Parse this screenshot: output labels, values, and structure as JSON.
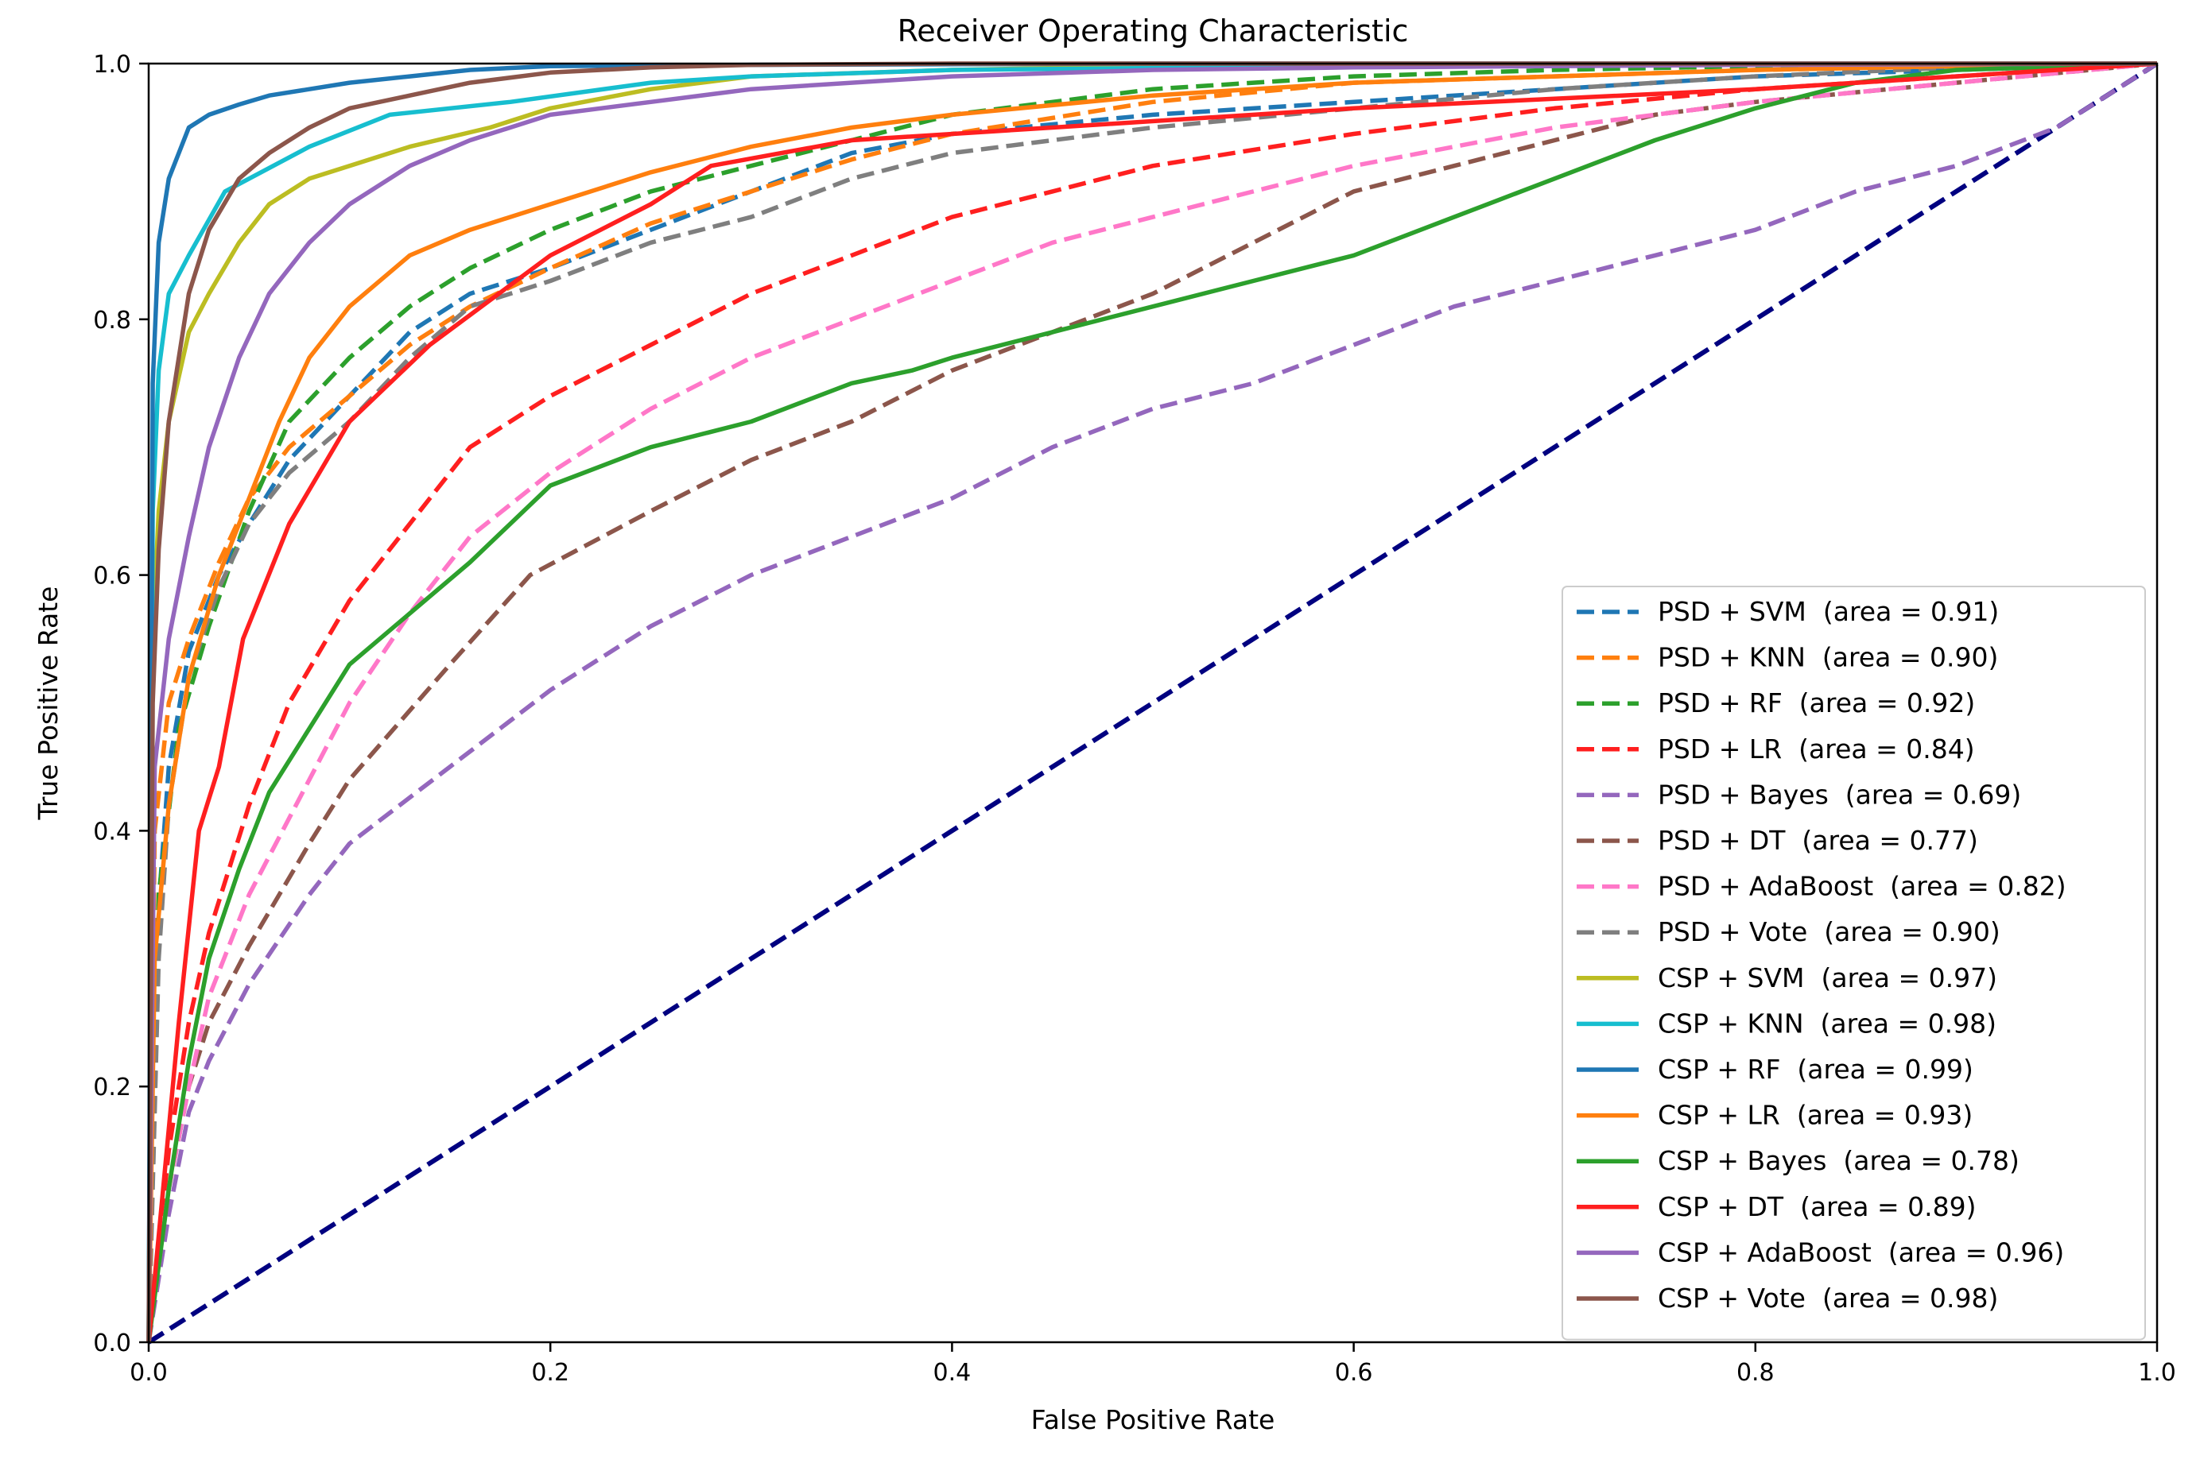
{
  "chart_data": {
    "type": "line",
    "title": "Receiver Operating Characteristic",
    "xlabel": "False Positive Rate",
    "ylabel": "True Positive Rate",
    "xlim": [
      0.0,
      1.0
    ],
    "ylim": [
      0.0,
      1.0
    ],
    "x_ticks": [
      "0.0",
      "0.2",
      "0.4",
      "0.6",
      "0.8",
      "1.0"
    ],
    "y_ticks": [
      "0.0",
      "0.2",
      "0.4",
      "0.6",
      "0.8",
      "1.0"
    ],
    "grid": false,
    "legend_position": "lower-right",
    "reference_line": {
      "name": "chance",
      "color": "#000080",
      "style": "dashed",
      "x": [
        0,
        1
      ],
      "y": [
        0,
        1
      ]
    },
    "series": [
      {
        "name": "PSD + SVM",
        "legend": "PSD + SVM  (area = 0.91)",
        "color": "#1f77b4",
        "style": "dashed",
        "x": [
          0,
          0.003,
          0.01,
          0.02,
          0.035,
          0.05,
          0.07,
          0.1,
          0.13,
          0.16,
          0.2,
          0.25,
          0.3,
          0.35,
          0.4,
          0.5,
          0.6,
          0.7,
          0.8,
          0.9,
          1.0
        ],
        "y": [
          0,
          0.3,
          0.45,
          0.54,
          0.6,
          0.64,
          0.69,
          0.74,
          0.79,
          0.82,
          0.84,
          0.87,
          0.9,
          0.93,
          0.945,
          0.96,
          0.97,
          0.98,
          0.99,
          0.995,
          1.0
        ]
      },
      {
        "name": "PSD + KNN",
        "legend": "PSD + KNN  (area = 0.90)",
        "color": "#ff7f0e",
        "style": "dashed",
        "x": [
          0,
          0.003,
          0.01,
          0.02,
          0.035,
          0.05,
          0.07,
          0.1,
          0.13,
          0.16,
          0.2,
          0.25,
          0.3,
          0.35,
          0.4,
          0.5,
          0.6,
          0.7,
          0.8,
          0.9,
          1.0
        ],
        "y": [
          0,
          0.4,
          0.5,
          0.55,
          0.61,
          0.66,
          0.7,
          0.74,
          0.78,
          0.81,
          0.84,
          0.875,
          0.9,
          0.925,
          0.945,
          0.97,
          0.985,
          0.99,
          0.995,
          0.998,
          1.0
        ]
      },
      {
        "name": "PSD + RF",
        "legend": "PSD + RF  (area = 0.92)",
        "color": "#2ca02c",
        "style": "dashed",
        "x": [
          0,
          0.005,
          0.015,
          0.03,
          0.05,
          0.07,
          0.1,
          0.13,
          0.16,
          0.2,
          0.25,
          0.3,
          0.35,
          0.4,
          0.5,
          0.6,
          0.7,
          0.8,
          0.9,
          1.0
        ],
        "y": [
          0,
          0.35,
          0.48,
          0.56,
          0.65,
          0.72,
          0.77,
          0.81,
          0.84,
          0.87,
          0.9,
          0.92,
          0.94,
          0.96,
          0.98,
          0.99,
          0.995,
          0.998,
          0.999,
          1.0
        ]
      },
      {
        "name": "PSD + LR",
        "legend": "PSD + LR  (area = 0.84)",
        "color": "#ff1f1f",
        "style": "dashed",
        "x": [
          0,
          0.01,
          0.02,
          0.03,
          0.05,
          0.07,
          0.1,
          0.13,
          0.16,
          0.2,
          0.25,
          0.3,
          0.35,
          0.4,
          0.45,
          0.5,
          0.6,
          0.7,
          0.8,
          0.9,
          1.0
        ],
        "y": [
          0,
          0.15,
          0.25,
          0.32,
          0.42,
          0.5,
          0.58,
          0.64,
          0.7,
          0.74,
          0.78,
          0.82,
          0.85,
          0.88,
          0.9,
          0.92,
          0.945,
          0.965,
          0.98,
          0.99,
          1.0
        ]
      },
      {
        "name": "PSD + Bayes",
        "legend": "PSD + Bayes  (area = 0.69)",
        "color": "#9467bd",
        "style": "dashed",
        "x": [
          0,
          0.01,
          0.02,
          0.03,
          0.05,
          0.08,
          0.1,
          0.15,
          0.2,
          0.25,
          0.3,
          0.35,
          0.4,
          0.45,
          0.5,
          0.55,
          0.6,
          0.65,
          0.7,
          0.75,
          0.8,
          0.85,
          0.9,
          0.95,
          1.0
        ],
        "y": [
          0,
          0.1,
          0.18,
          0.22,
          0.28,
          0.35,
          0.39,
          0.45,
          0.51,
          0.56,
          0.6,
          0.63,
          0.66,
          0.7,
          0.73,
          0.75,
          0.78,
          0.81,
          0.83,
          0.85,
          0.87,
          0.9,
          0.92,
          0.95,
          1.0
        ]
      },
      {
        "name": "PSD + DT",
        "legend": "PSD + DT  (area = 0.77)",
        "color": "#8c564b",
        "style": "dashed",
        "x": [
          0,
          0.01,
          0.02,
          0.03,
          0.05,
          0.08,
          0.1,
          0.15,
          0.19,
          0.25,
          0.3,
          0.35,
          0.4,
          0.45,
          0.5,
          0.55,
          0.6,
          0.65,
          0.7,
          0.75,
          0.8,
          0.9,
          1.0
        ],
        "y": [
          0,
          0.12,
          0.2,
          0.25,
          0.31,
          0.39,
          0.44,
          0.53,
          0.6,
          0.65,
          0.69,
          0.72,
          0.76,
          0.79,
          0.82,
          0.86,
          0.9,
          0.92,
          0.94,
          0.96,
          0.97,
          0.985,
          1.0
        ]
      },
      {
        "name": "PSD + AdaBoost",
        "legend": "PSD + AdaBoost  (area = 0.82)",
        "color": "#ff77c8",
        "style": "dashed",
        "x": [
          0,
          0.01,
          0.02,
          0.03,
          0.05,
          0.08,
          0.1,
          0.13,
          0.16,
          0.2,
          0.25,
          0.3,
          0.35,
          0.4,
          0.45,
          0.5,
          0.6,
          0.7,
          0.8,
          0.9,
          1.0
        ],
        "y": [
          0,
          0.12,
          0.2,
          0.27,
          0.35,
          0.44,
          0.5,
          0.57,
          0.63,
          0.68,
          0.73,
          0.77,
          0.8,
          0.83,
          0.86,
          0.88,
          0.92,
          0.95,
          0.97,
          0.985,
          1.0
        ]
      },
      {
        "name": "PSD + Vote",
        "legend": "PSD + Vote  (area = 0.90)",
        "color": "#7f7f7f",
        "style": "dashed",
        "x": [
          0,
          0.005,
          0.01,
          0.02,
          0.035,
          0.05,
          0.07,
          0.1,
          0.13,
          0.16,
          0.2,
          0.25,
          0.3,
          0.35,
          0.4,
          0.45,
          0.5,
          0.6,
          0.7,
          0.8,
          0.9,
          1.0
        ],
        "y": [
          0,
          0.3,
          0.42,
          0.52,
          0.59,
          0.64,
          0.68,
          0.72,
          0.77,
          0.81,
          0.83,
          0.86,
          0.88,
          0.91,
          0.93,
          0.94,
          0.95,
          0.965,
          0.98,
          0.99,
          0.997,
          1.0
        ]
      },
      {
        "name": "CSP + SVM",
        "legend": "CSP + SVM  (area = 0.97)",
        "color": "#bcbd22",
        "style": "solid",
        "x": [
          0,
          0.002,
          0.005,
          0.01,
          0.02,
          0.03,
          0.045,
          0.06,
          0.08,
          0.1,
          0.13,
          0.17,
          0.2,
          0.25,
          0.3,
          0.4,
          0.5,
          0.7,
          1.0
        ],
        "y": [
          0,
          0.55,
          0.65,
          0.72,
          0.79,
          0.82,
          0.86,
          0.89,
          0.91,
          0.92,
          0.935,
          0.95,
          0.965,
          0.98,
          0.99,
          0.995,
          0.998,
          0.999,
          1.0
        ]
      },
      {
        "name": "CSP + KNN",
        "legend": "CSP + KNN  (area = 0.98)",
        "color": "#17becf",
        "style": "solid",
        "x": [
          0,
          0.002,
          0.005,
          0.01,
          0.02,
          0.038,
          0.05,
          0.08,
          0.12,
          0.18,
          0.25,
          0.3,
          0.4,
          0.6,
          1.0
        ],
        "y": [
          0,
          0.65,
          0.76,
          0.82,
          0.85,
          0.9,
          0.91,
          0.935,
          0.96,
          0.97,
          0.985,
          0.99,
          0.995,
          0.998,
          1.0
        ]
      },
      {
        "name": "CSP + RF",
        "legend": "CSP + RF  (area = 0.99)",
        "color": "#1f77b4",
        "style": "solid",
        "x": [
          0,
          0.002,
          0.005,
          0.01,
          0.015,
          0.02,
          0.03,
          0.045,
          0.06,
          0.08,
          0.1,
          0.13,
          0.16,
          0.2,
          0.3,
          0.5,
          1.0
        ],
        "y": [
          0,
          0.75,
          0.86,
          0.91,
          0.93,
          0.95,
          0.96,
          0.968,
          0.975,
          0.98,
          0.985,
          0.99,
          0.995,
          0.998,
          0.999,
          1.0,
          1.0
        ]
      },
      {
        "name": "CSP + LR",
        "legend": "CSP + LR  (area = 0.93)",
        "color": "#ff7f0e",
        "style": "solid",
        "x": [
          0,
          0.003,
          0.01,
          0.02,
          0.035,
          0.05,
          0.065,
          0.08,
          0.1,
          0.13,
          0.16,
          0.2,
          0.25,
          0.3,
          0.35,
          0.4,
          0.5,
          0.6,
          0.7,
          0.8,
          0.9,
          1.0
        ],
        "y": [
          0,
          0.3,
          0.42,
          0.52,
          0.6,
          0.66,
          0.72,
          0.77,
          0.81,
          0.85,
          0.87,
          0.89,
          0.915,
          0.935,
          0.95,
          0.96,
          0.975,
          0.985,
          0.99,
          0.995,
          0.998,
          1.0
        ]
      },
      {
        "name": "CSP + Bayes",
        "legend": "CSP + Bayes  (area = 0.78)",
        "color": "#2ca02c",
        "style": "solid",
        "x": [
          0,
          0.01,
          0.02,
          0.03,
          0.045,
          0.06,
          0.08,
          0.1,
          0.13,
          0.16,
          0.2,
          0.25,
          0.3,
          0.35,
          0.38,
          0.4,
          0.45,
          0.5,
          0.55,
          0.6,
          0.65,
          0.7,
          0.75,
          0.8,
          0.85,
          0.9,
          1.0
        ],
        "y": [
          0,
          0.12,
          0.22,
          0.3,
          0.37,
          0.43,
          0.48,
          0.53,
          0.57,
          0.61,
          0.67,
          0.7,
          0.72,
          0.75,
          0.76,
          0.77,
          0.79,
          0.81,
          0.83,
          0.85,
          0.88,
          0.91,
          0.94,
          0.965,
          0.985,
          0.995,
          1.0
        ]
      },
      {
        "name": "CSP + DT",
        "legend": "CSP + DT  (area = 0.89)",
        "color": "#ff1f1f",
        "style": "solid",
        "x": [
          0,
          0.015,
          0.025,
          0.035,
          0.047,
          0.07,
          0.1,
          0.14,
          0.2,
          0.25,
          0.28,
          0.35,
          0.45,
          0.6,
          0.8,
          1.0
        ],
        "y": [
          0,
          0.25,
          0.4,
          0.45,
          0.55,
          0.64,
          0.72,
          0.78,
          0.85,
          0.89,
          0.92,
          0.94,
          0.95,
          0.965,
          0.98,
          1.0
        ]
      },
      {
        "name": "CSP + AdaBoost",
        "legend": "CSP + AdaBoost  (area = 0.96)",
        "color": "#9467bd",
        "style": "solid",
        "x": [
          0,
          0.003,
          0.01,
          0.02,
          0.03,
          0.045,
          0.06,
          0.08,
          0.1,
          0.13,
          0.16,
          0.2,
          0.25,
          0.3,
          0.4,
          0.5,
          0.6,
          0.8,
          1.0
        ],
        "y": [
          0,
          0.45,
          0.55,
          0.63,
          0.7,
          0.77,
          0.82,
          0.86,
          0.89,
          0.92,
          0.94,
          0.96,
          0.97,
          0.98,
          0.99,
          0.995,
          0.997,
          0.999,
          1.0
        ]
      },
      {
        "name": "CSP + Vote",
        "legend": "CSP + Vote  (area = 0.98)",
        "color": "#8c564b",
        "style": "solid",
        "x": [
          0,
          0.002,
          0.005,
          0.01,
          0.02,
          0.03,
          0.045,
          0.06,
          0.08,
          0.1,
          0.13,
          0.16,
          0.2,
          0.25,
          0.3,
          0.4,
          0.6,
          1.0
        ],
        "y": [
          0,
          0.5,
          0.62,
          0.72,
          0.82,
          0.87,
          0.91,
          0.93,
          0.95,
          0.965,
          0.975,
          0.985,
          0.993,
          0.997,
          0.999,
          1.0,
          1.0,
          1.0
        ]
      }
    ]
  }
}
